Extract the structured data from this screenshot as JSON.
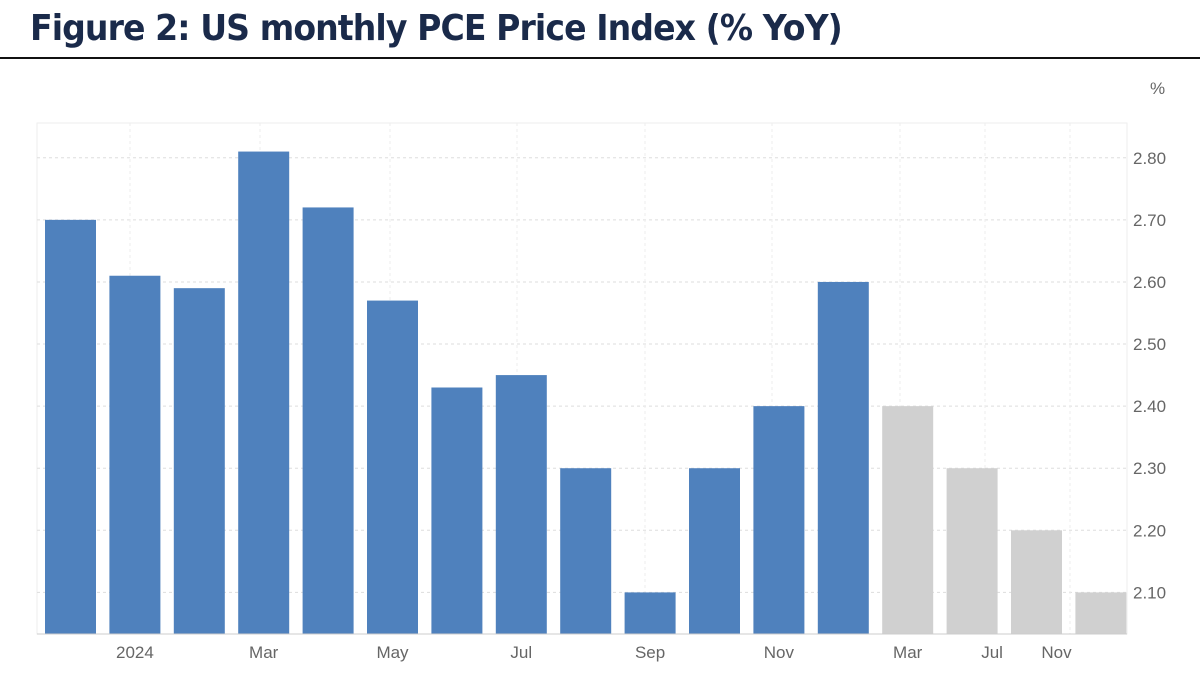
{
  "title": "Figure 2: US monthly PCE Price Index (% YoY)",
  "chart_data": {
    "type": "bar",
    "title": "Figure 2: US monthly PCE Price Index (% YoY)",
    "unit_label": "%",
    "categories": [
      "",
      "2024",
      "",
      "Mar",
      "",
      "May",
      "",
      "Jul",
      "",
      "Sep",
      "",
      "Nov",
      "",
      "Mar",
      "Jul",
      "Nov",
      ""
    ],
    "values": [
      2.7,
      2.61,
      2.59,
      2.81,
      2.72,
      2.57,
      2.43,
      2.45,
      2.3,
      2.1,
      2.3,
      2.4,
      2.6,
      2.4,
      2.3,
      2.2,
      2.1
    ],
    "forecast": [
      false,
      false,
      false,
      false,
      false,
      false,
      false,
      false,
      false,
      false,
      false,
      false,
      false,
      true,
      true,
      true,
      true
    ],
    "yticks": [
      "2.10",
      "2.20",
      "2.30",
      "2.40",
      "2.50",
      "2.60",
      "2.70",
      "2.80"
    ],
    "ylim": [
      2.033,
      2.856
    ],
    "grid": true,
    "colors": {
      "actual": "#4f81bd",
      "forecast": "#d0d0d0"
    }
  }
}
